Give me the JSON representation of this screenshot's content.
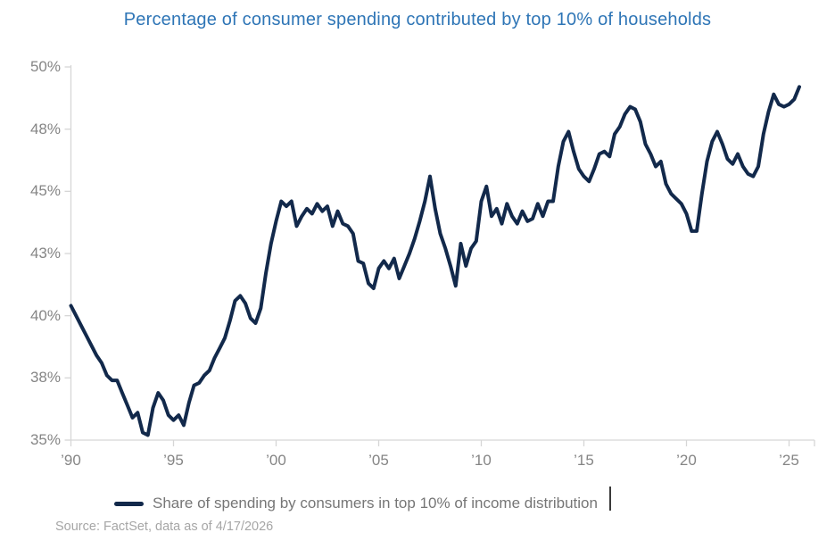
{
  "title": "Percentage of consumer spending contributed by top 10% of households",
  "legend": {
    "label": "Share of spending by consumers in top 10% of income distribution"
  },
  "source": "Source: FactSet, data as of 4/17/2026",
  "colors": {
    "line": "#12294B",
    "title_text": "#2E75B6",
    "axis_text": "#858585",
    "axis_line": "#D6D6D6",
    "legend_text": "#767676",
    "source_text": "#A6A6A6"
  },
  "chart_data": {
    "type": "line",
    "title": "Percentage of consumer spending contributed by top 10% of households",
    "xlabel": "",
    "ylabel": "",
    "xlim": [
      1990,
      2026
    ],
    "ylim": [
      35,
      50
    ],
    "grid": false,
    "legend_position": "bottom",
    "x_tick_years": [
      1990,
      1995,
      2000,
      2005,
      2010,
      2015,
      2020,
      2025
    ],
    "x_tick_labels": [
      "’90",
      "’95",
      "’00",
      "’05",
      "’10",
      "’15",
      "’20",
      "’25"
    ],
    "y_tick_values": [
      35,
      37.5,
      40,
      42.5,
      45,
      47.5,
      50
    ],
    "y_tick_labels": [
      "35%",
      "38%",
      "40%",
      "43%",
      "45%",
      "48%",
      "50%"
    ],
    "series": [
      {
        "name": "Share of spending by consumers in top 10% of income distribution",
        "x_start": 1990.0,
        "x_step": 0.25,
        "x_end": 2025.5,
        "unit": "%",
        "values": [
          40.4,
          40.0,
          39.6,
          39.2,
          38.8,
          38.4,
          38.1,
          37.6,
          37.4,
          37.4,
          36.9,
          36.4,
          35.9,
          36.1,
          35.3,
          35.2,
          36.3,
          36.9,
          36.6,
          36.0,
          35.8,
          36.0,
          35.6,
          36.5,
          37.2,
          37.3,
          37.6,
          37.8,
          38.3,
          38.7,
          39.1,
          39.8,
          40.6,
          40.8,
          40.5,
          39.9,
          39.7,
          40.3,
          41.7,
          42.9,
          43.8,
          44.6,
          44.4,
          44.6,
          43.6,
          44.0,
          44.3,
          44.1,
          44.5,
          44.2,
          44.4,
          43.6,
          44.2,
          43.7,
          43.6,
          43.3,
          42.2,
          42.1,
          41.3,
          41.1,
          41.9,
          42.2,
          41.9,
          42.3,
          41.5,
          42.0,
          42.5,
          43.1,
          43.8,
          44.6,
          45.6,
          44.3,
          43.3,
          42.7,
          42.0,
          41.2,
          42.9,
          42.0,
          42.7,
          43.0,
          44.6,
          45.2,
          44.0,
          44.3,
          43.7,
          44.5,
          44.0,
          43.7,
          44.2,
          43.8,
          43.9,
          44.5,
          44.0,
          44.6,
          44.6,
          46.0,
          47.0,
          47.4,
          46.6,
          45.9,
          45.6,
          45.4,
          45.9,
          46.5,
          46.6,
          46.4,
          47.3,
          47.6,
          48.1,
          48.4,
          48.3,
          47.8,
          46.9,
          46.5,
          46.0,
          46.2,
          45.3,
          44.9,
          44.7,
          44.5,
          44.1,
          43.4,
          43.4,
          44.9,
          46.2,
          47.0,
          47.4,
          46.9,
          46.3,
          46.1,
          46.5,
          46.0,
          45.7,
          45.6,
          46.0,
          47.3,
          48.2,
          48.9,
          48.5,
          48.4,
          48.5,
          48.7,
          49.2
        ]
      }
    ]
  }
}
